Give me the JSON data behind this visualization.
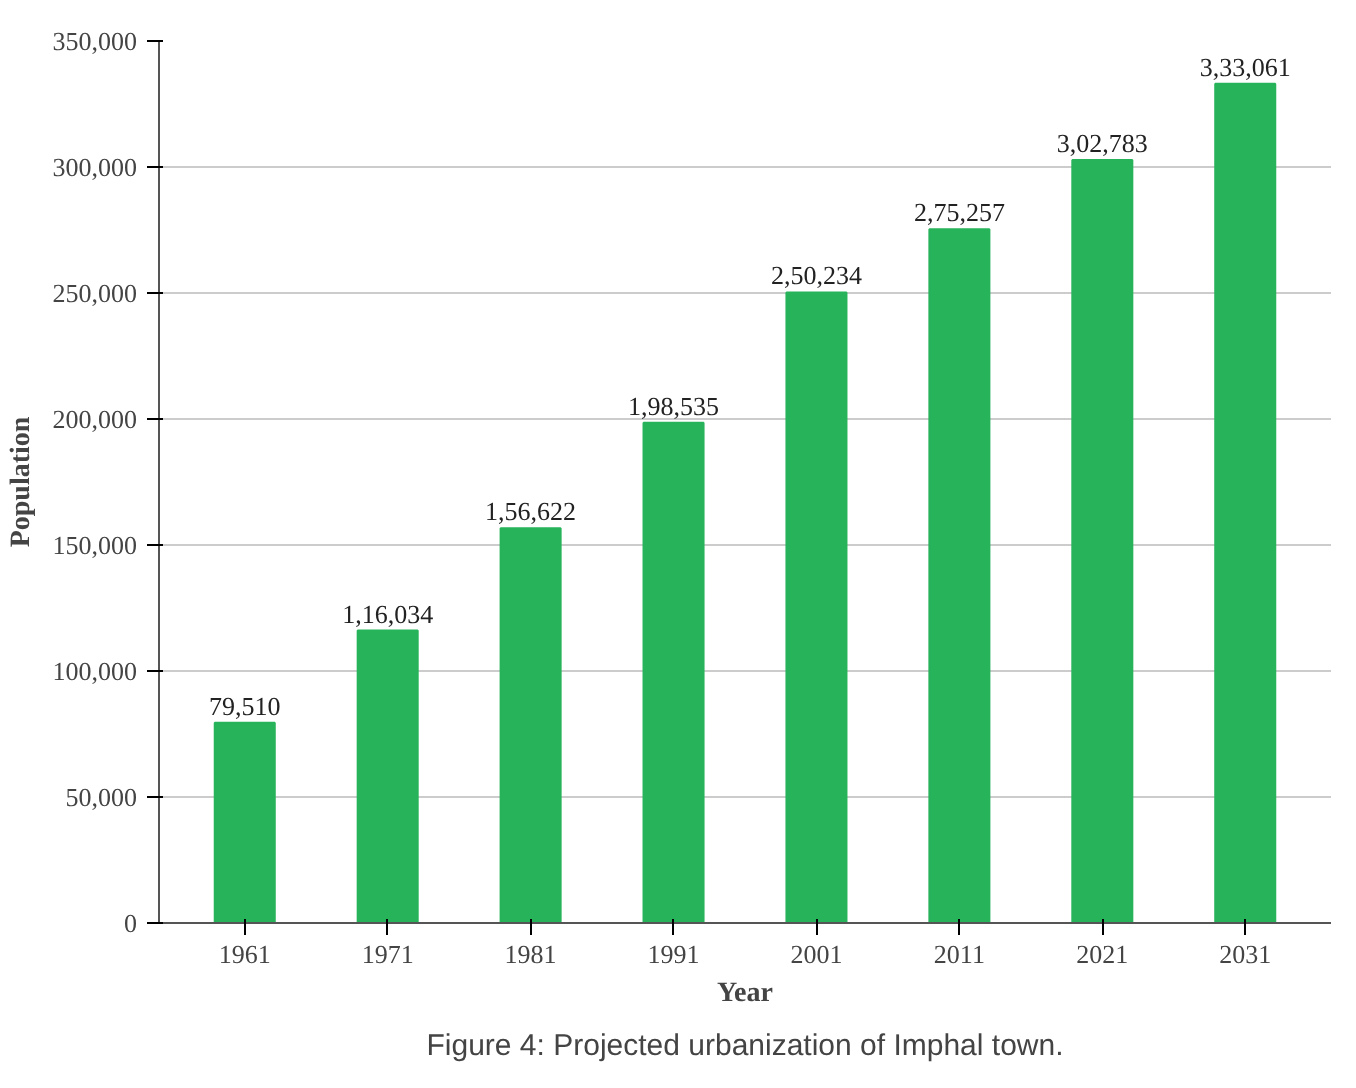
{
  "chart_data": {
    "type": "bar",
    "xlabel": "Year",
    "ylabel": "Population",
    "categories": [
      "1961",
      "1971",
      "1981",
      "1991",
      "2001",
      "2011",
      "2021",
      "2031"
    ],
    "values": [
      79510,
      116034,
      156622,
      198535,
      250234,
      275257,
      302783,
      333061
    ],
    "value_labels": [
      "79,510",
      "1,16,034",
      "1,56,622",
      "1,98,535",
      "2,50,234",
      "2,75,257",
      "3,02,783",
      "3,33,061"
    ],
    "color": "#27b35a",
    "ylim": [
      0,
      350000
    ],
    "yticks": [
      {
        "value": 0,
        "label": "0"
      },
      {
        "value": 50000,
        "label": "50,000"
      },
      {
        "value": 100000,
        "label": "100,000"
      },
      {
        "value": 150000,
        "label": "150,000"
      },
      {
        "value": 200000,
        "label": "200,000"
      },
      {
        "value": 250000,
        "label": "250,000"
      },
      {
        "value": 300000,
        "label": "300,000"
      },
      {
        "value": 350000,
        "label": "350,000"
      }
    ],
    "grid": "y",
    "annotations": [
      "Figure 4: Projected urbanization of Imphal town."
    ]
  }
}
